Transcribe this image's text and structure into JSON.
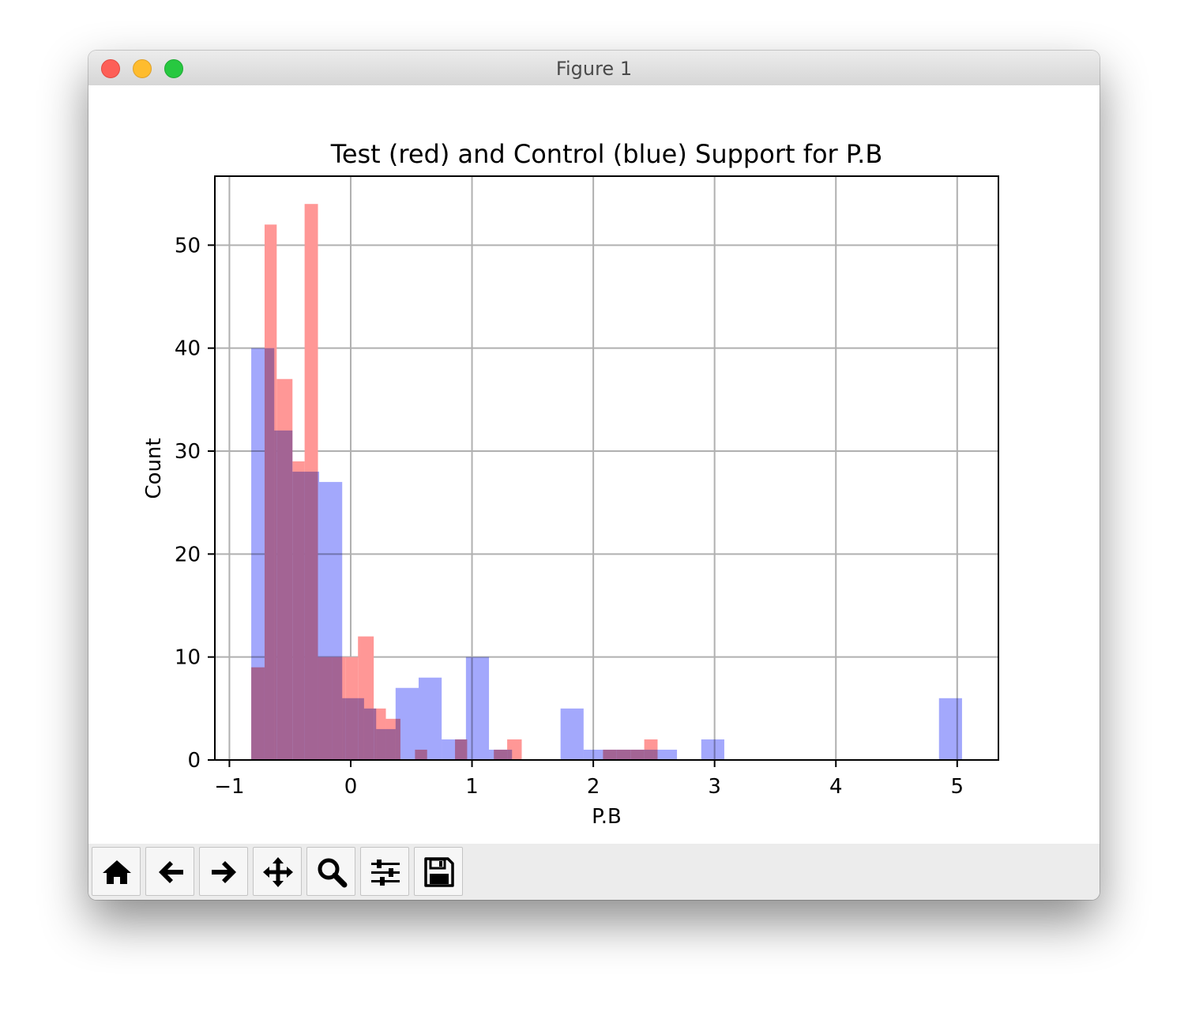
{
  "window": {
    "title": "Figure 1"
  },
  "toolbar": {
    "buttons": [
      {
        "icon": "home-icon",
        "name": "home-button"
      },
      {
        "icon": "arrow-left-icon",
        "name": "back-button"
      },
      {
        "icon": "arrow-right-icon",
        "name": "forward-button"
      },
      {
        "icon": "move-icon",
        "name": "pan-button"
      },
      {
        "icon": "search-icon",
        "name": "zoom-button"
      },
      {
        "icon": "sliders-icon",
        "name": "configure-subplots-button"
      },
      {
        "icon": "floppy-disk-icon",
        "name": "save-button"
      }
    ]
  },
  "chart_data": {
    "type": "bar",
    "title": "Test (red) and Control (blue) Support for P.B",
    "xlabel": "P.B",
    "ylabel": "Count",
    "xlim": [
      -1.12,
      5.34
    ],
    "ylim": [
      0,
      56.7
    ],
    "xticks": [
      -1,
      0,
      1,
      2,
      3,
      4,
      5
    ],
    "xtick_labels": [
      "−1",
      "0",
      "1",
      "2",
      "3",
      "4",
      "5"
    ],
    "yticks": [
      0,
      10,
      20,
      30,
      40,
      50
    ],
    "ytick_labels": [
      "0",
      "10",
      "20",
      "30",
      "40",
      "50"
    ],
    "grid": true,
    "legend": "none",
    "series": [
      {
        "color": "#ff9796",
        "bins": [
          {
            "x0": -0.82,
            "x1": -0.71,
            "count": 9
          },
          {
            "x0": -0.71,
            "x1": -0.61,
            "count": 52
          },
          {
            "x0": -0.61,
            "x1": -0.48,
            "count": 37
          },
          {
            "x0": -0.48,
            "x1": -0.38,
            "count": 29
          },
          {
            "x0": -0.38,
            "x1": -0.27,
            "count": 54
          },
          {
            "x0": -0.27,
            "x1": -0.15,
            "count": 10
          },
          {
            "x0": -0.15,
            "x1": -0.04,
            "count": 10
          },
          {
            "x0": -0.04,
            "x1": 0.06,
            "count": 10
          },
          {
            "x0": 0.06,
            "x1": 0.19,
            "count": 12
          },
          {
            "x0": 0.19,
            "x1": 0.29,
            "count": 5
          },
          {
            "x0": 0.29,
            "x1": 0.41,
            "count": 4
          },
          {
            "x0": 0.53,
            "x1": 0.63,
            "count": 1
          },
          {
            "x0": 0.86,
            "x1": 0.96,
            "count": 2
          },
          {
            "x0": 1.18,
            "x1": 1.29,
            "count": 1
          },
          {
            "x0": 1.29,
            "x1": 1.41,
            "count": 2
          },
          {
            "x0": 2.08,
            "x1": 2.19,
            "count": 1
          },
          {
            "x0": 2.19,
            "x1": 2.31,
            "count": 1
          },
          {
            "x0": 2.31,
            "x1": 2.42,
            "count": 1
          },
          {
            "x0": 2.42,
            "x1": 2.53,
            "count": 2
          }
        ]
      },
      {
        "color": "#9399fb",
        "bins": [
          {
            "x0": -0.82,
            "x1": -0.63,
            "count": 40
          },
          {
            "x0": -0.63,
            "x1": -0.48,
            "count": 32
          },
          {
            "x0": -0.48,
            "x1": -0.26,
            "count": 28
          },
          {
            "x0": -0.26,
            "x1": -0.07,
            "count": 27
          },
          {
            "x0": -0.07,
            "x1": 0.11,
            "count": 6
          },
          {
            "x0": 0.11,
            "x1": 0.21,
            "count": 5
          },
          {
            "x0": 0.21,
            "x1": 0.37,
            "count": 3
          },
          {
            "x0": 0.37,
            "x1": 0.56,
            "count": 7
          },
          {
            "x0": 0.56,
            "x1": 0.75,
            "count": 8
          },
          {
            "x0": 0.75,
            "x1": 0.95,
            "count": 2
          },
          {
            "x0": 0.95,
            "x1": 1.14,
            "count": 10
          },
          {
            "x0": 1.14,
            "x1": 1.33,
            "count": 1
          },
          {
            "x0": 1.73,
            "x1": 1.92,
            "count": 5
          },
          {
            "x0": 1.92,
            "x1": 2.11,
            "count": 1
          },
          {
            "x0": 2.11,
            "x1": 2.31,
            "count": 1
          },
          {
            "x0": 2.31,
            "x1": 2.5,
            "count": 1
          },
          {
            "x0": 2.5,
            "x1": 2.69,
            "count": 1
          },
          {
            "x0": 2.89,
            "x1": 3.08,
            "count": 2
          },
          {
            "x0": 4.85,
            "x1": 5.04,
            "count": 6
          }
        ]
      }
    ]
  }
}
